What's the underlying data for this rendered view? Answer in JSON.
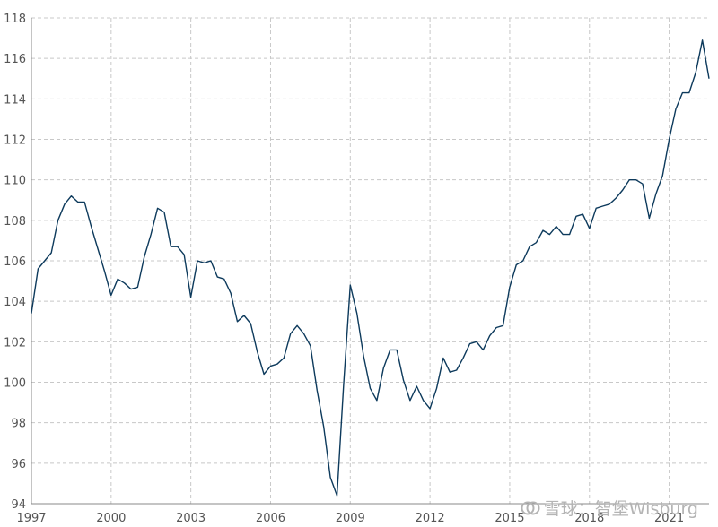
{
  "chart_data": {
    "type": "line",
    "title": "",
    "xlabel": "",
    "ylabel": "",
    "xlim": [
      1997,
      2022.5
    ],
    "ylim": [
      94,
      118
    ],
    "x_ticks": [
      "1997",
      "2000",
      "2003",
      "2006",
      "2009",
      "2012",
      "2015",
      "2018",
      "2021"
    ],
    "y_ticks": [
      "94",
      "96",
      "98",
      "100",
      "102",
      "104",
      "106",
      "108",
      "110",
      "112",
      "114",
      "116",
      "118"
    ],
    "grid": true,
    "series": [
      {
        "color": "#0d3a5c",
        "x": [
          1997.0,
          1997.25,
          1997.5,
          1997.75,
          1998.0,
          1998.25,
          1998.5,
          1998.75,
          1999.0,
          1999.25,
          1999.5,
          1999.75,
          2000.0,
          2000.25,
          2000.5,
          2000.75,
          2001.0,
          2001.25,
          2001.5,
          2001.75,
          2002.0,
          2002.25,
          2002.5,
          2002.75,
          2003.0,
          2003.25,
          2003.5,
          2003.75,
          2004.0,
          2004.25,
          2004.5,
          2004.75,
          2005.0,
          2005.25,
          2005.5,
          2005.75,
          2006.0,
          2006.25,
          2006.5,
          2006.75,
          2007.0,
          2007.25,
          2007.5,
          2007.75,
          2008.0,
          2008.25,
          2008.5,
          2008.75,
          2009.0,
          2009.25,
          2009.5,
          2009.75,
          2010.0,
          2010.25,
          2010.5,
          2010.75,
          2011.0,
          2011.25,
          2011.5,
          2011.75,
          2012.0,
          2012.25,
          2012.5,
          2012.75,
          2013.0,
          2013.25,
          2013.5,
          2013.75,
          2014.0,
          2014.25,
          2014.5,
          2014.75,
          2015.0,
          2015.25,
          2015.5,
          2015.75,
          2016.0,
          2016.25,
          2016.5,
          2016.75,
          2017.0,
          2017.25,
          2017.5,
          2017.75,
          2018.0,
          2018.25,
          2018.5,
          2018.75,
          2019.0,
          2019.25,
          2019.5,
          2019.75,
          2020.0,
          2020.25,
          2020.5,
          2020.75,
          2021.0,
          2021.25,
          2021.5,
          2021.75,
          2022.0,
          2022.25,
          2022.5
        ],
        "y": [
          103.4,
          105.6,
          106.0,
          106.4,
          108.0,
          108.8,
          109.2,
          108.9,
          108.9,
          107.7,
          106.6,
          105.5,
          104.3,
          105.1,
          104.9,
          104.6,
          104.7,
          106.2,
          107.3,
          108.6,
          108.4,
          106.7,
          106.7,
          106.3,
          104.2,
          106.0,
          105.9,
          106.0,
          105.2,
          105.1,
          104.4,
          103.0,
          103.3,
          102.9,
          101.5,
          100.4,
          100.8,
          100.9,
          101.2,
          102.4,
          102.8,
          102.4,
          101.8,
          99.6,
          97.8,
          95.3,
          94.4,
          99.9,
          104.8,
          103.4,
          101.3,
          99.7,
          99.1,
          100.7,
          101.6,
          101.6,
          100.1,
          99.1,
          99.8,
          99.1,
          98.7,
          99.7,
          101.2,
          100.5,
          100.6,
          101.2,
          101.9,
          102.0,
          101.6,
          102.3,
          102.7,
          102.8,
          104.7,
          105.8,
          106.0,
          106.7,
          106.9,
          107.5,
          107.3,
          107.7,
          107.3,
          107.3,
          108.2,
          108.3,
          107.6,
          108.6,
          108.7,
          108.8,
          109.1,
          109.5,
          110.0,
          110.0,
          109.8,
          108.1,
          109.3,
          110.2,
          112.0,
          113.5,
          114.3,
          114.3,
          115.3,
          116.9,
          115.0
        ]
      }
    ]
  },
  "watermark": {
    "text": "雪球：智堡Wisburg"
  }
}
